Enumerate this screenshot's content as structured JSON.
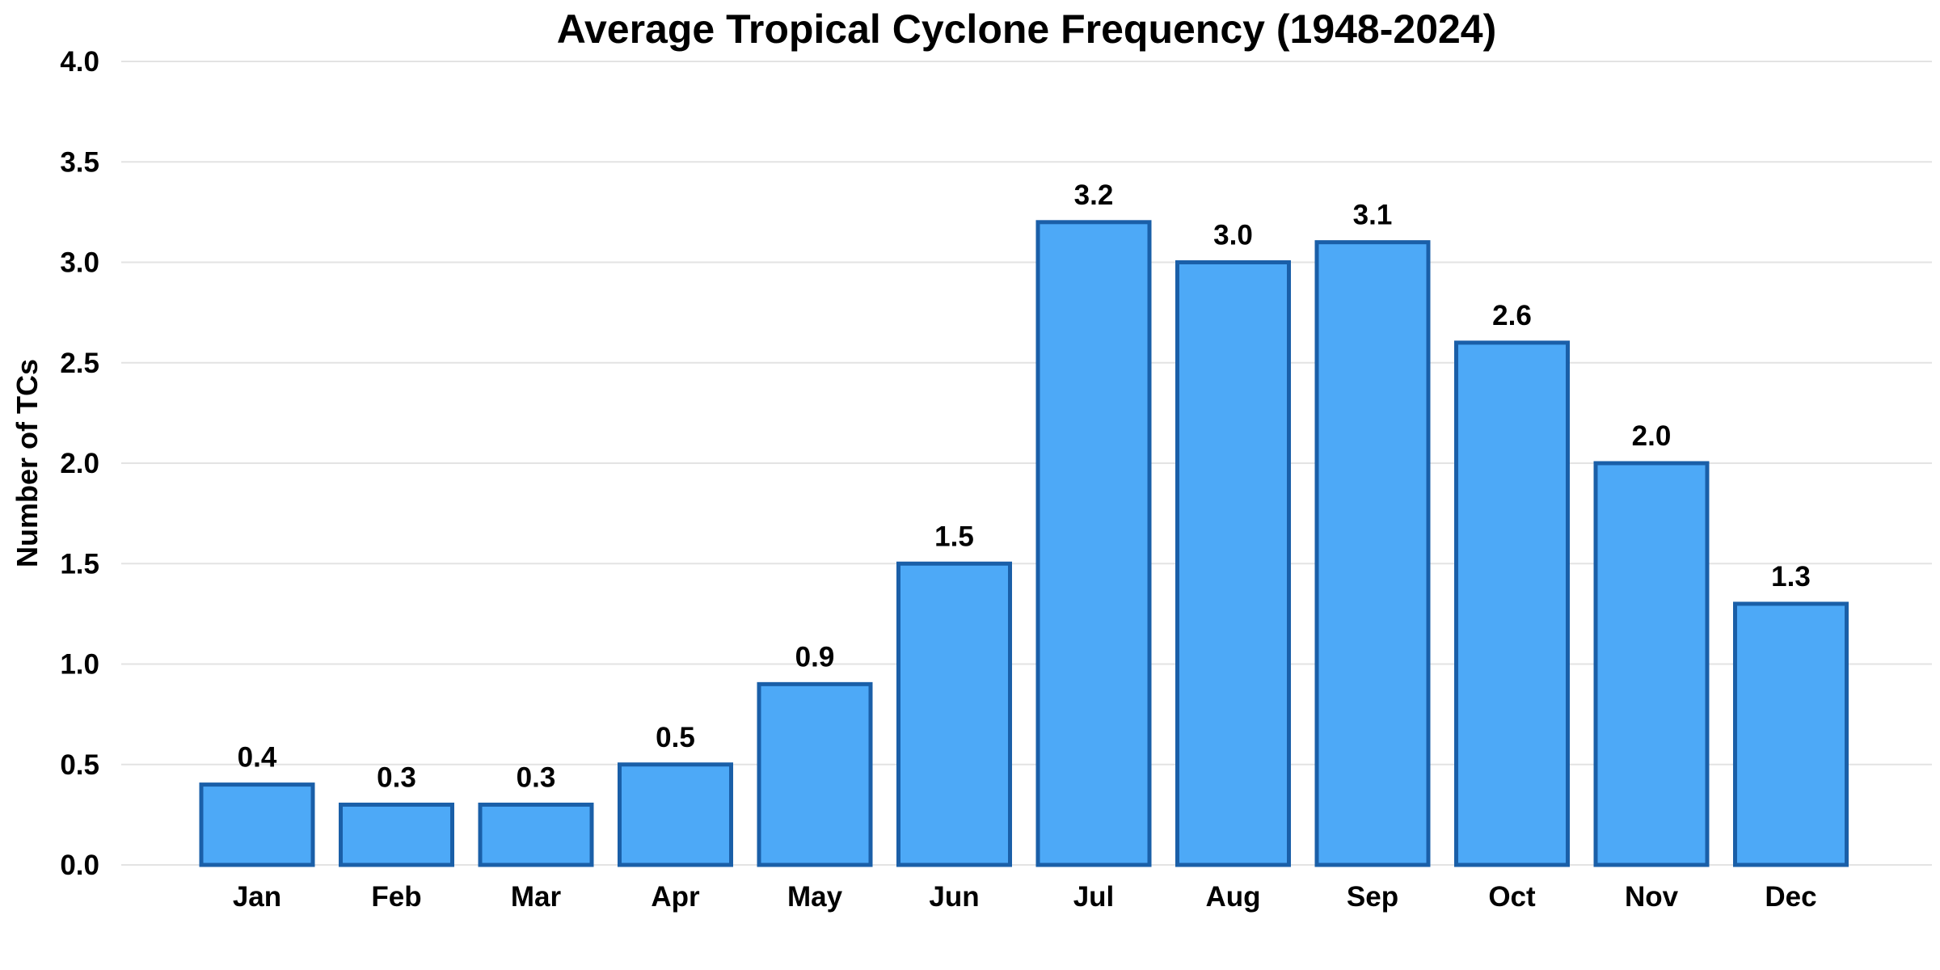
{
  "chart_data": {
    "type": "bar",
    "title": "Average Tropical Cyclone Frequency (1948-2024)",
    "xlabel": "",
    "ylabel": "Number of TCs",
    "categories": [
      "Jan",
      "Feb",
      "Mar",
      "Apr",
      "May",
      "Jun",
      "Jul",
      "Aug",
      "Sep",
      "Oct",
      "Nov",
      "Dec"
    ],
    "values": [
      0.4,
      0.3,
      0.3,
      0.5,
      0.9,
      1.5,
      3.2,
      3.0,
      3.1,
      2.6,
      2.0,
      1.3
    ],
    "data_labels": [
      "0.4",
      "0.3",
      "0.3",
      "0.5",
      "0.9",
      "1.5",
      "3.2",
      "3.0",
      "3.1",
      "2.6",
      "2.0",
      "1.3"
    ],
    "ylim": [
      0,
      4.0
    ],
    "yticks": [
      0.0,
      0.5,
      1.0,
      1.5,
      2.0,
      2.5,
      3.0,
      3.5,
      4.0
    ],
    "ytick_labels": [
      "0.0",
      "0.5",
      "1.0",
      "1.5",
      "2.0",
      "2.5",
      "3.0",
      "3.5",
      "4.0"
    ],
    "grid": "horizontal",
    "legend": "none",
    "colors": {
      "bar_fill": "#4da9f7",
      "bar_edge": "#1a5fa8",
      "grid": "#e3e3e3",
      "text": "#000000"
    }
  }
}
